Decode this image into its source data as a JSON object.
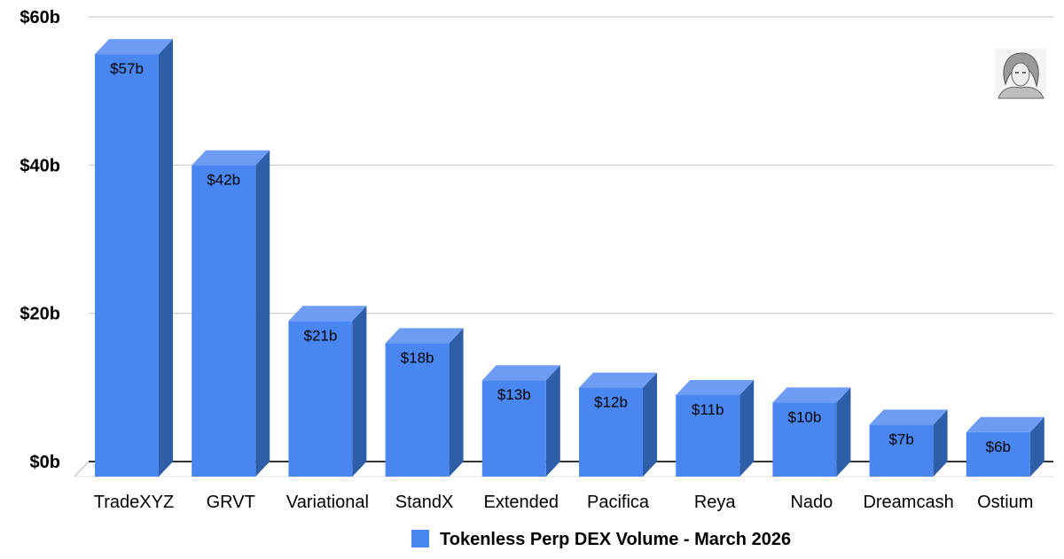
{
  "chart_data": {
    "type": "bar",
    "style": "3d",
    "categories": [
      "TradeXYZ",
      "GRVT",
      "Variational",
      "StandX",
      "Extended",
      "Pacifica",
      "Reya",
      "Nado",
      "Dreamcash",
      "Ostium"
    ],
    "series": [
      {
        "name": "Tokenless Perp DEX Volume - March 2026",
        "values": [
          57,
          42,
          21,
          18,
          13,
          12,
          11,
          10,
          7,
          6
        ],
        "data_labels": [
          "$57b",
          "$42b",
          "$21b",
          "$18b",
          "$13b",
          "$12b",
          "$11b",
          "$10b",
          "$7b",
          "$6b"
        ]
      }
    ],
    "y_ticks": [
      "$0b",
      "$20b",
      "$40b",
      "$60b"
    ],
    "y_tick_values": [
      0,
      20,
      40,
      60
    ],
    "ylim": [
      0,
      60
    ],
    "grid": true,
    "legend_position": "bottom",
    "colors": {
      "bar_front": "#4a86f0",
      "bar_side": "#2f5ea9",
      "bar_top": "#6d9cf2",
      "grid": "#cccccc",
      "axis": "#333333"
    }
  },
  "avatar": {
    "icon": "sketch-portrait-avatar"
  }
}
